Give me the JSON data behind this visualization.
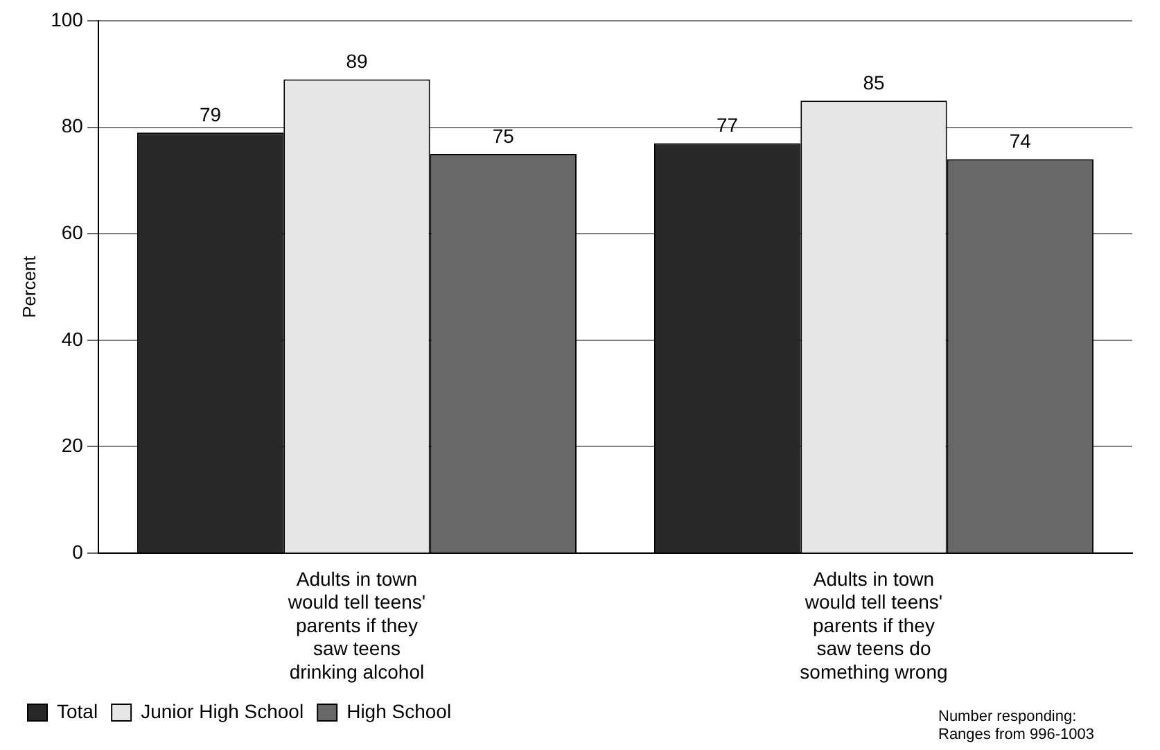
{
  "chart_data": {
    "type": "bar",
    "ylabel": "Percent",
    "categories": [
      "Adults in town would tell teens' parents if they saw teens drinking alcohol",
      "Adults in town would tell teens' parents if they saw teens do something wrong"
    ],
    "series": [
      {
        "name": "Total",
        "color": "#282828",
        "values": [
          79,
          77
        ]
      },
      {
        "name": "Junior High School",
        "color": "#e6e6e6",
        "values": [
          89,
          85
        ]
      },
      {
        "name": "High School",
        "color": "#686868",
        "values": [
          75,
          74
        ]
      }
    ],
    "ylim": [
      0,
      100
    ],
    "yticks": [
      0,
      20,
      40,
      60,
      80,
      100
    ],
    "grid": "y",
    "legend": "bottom left",
    "data_labels": true,
    "annotations": [
      "Number responding: Ranges from 996-1003"
    ]
  }
}
